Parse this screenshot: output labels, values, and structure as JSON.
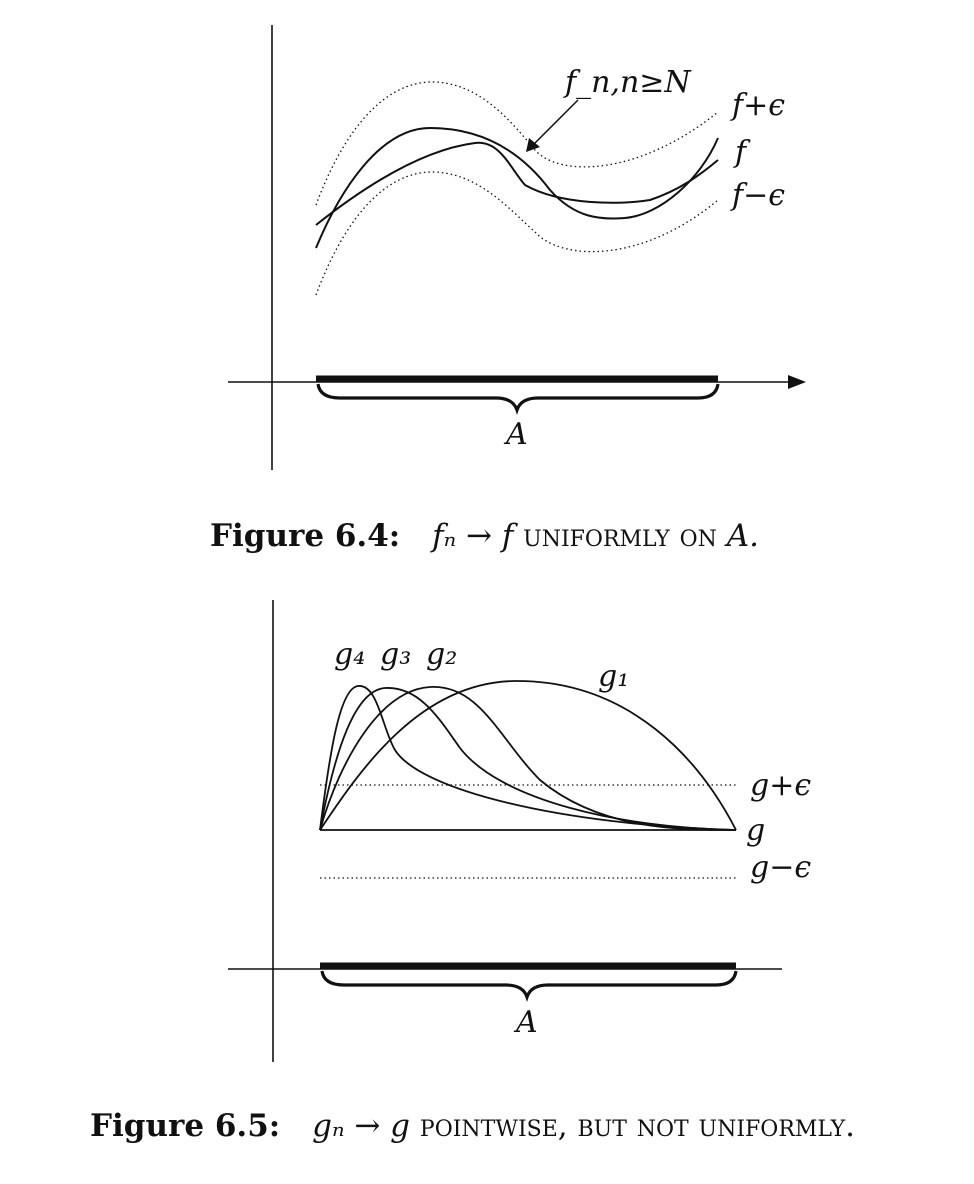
{
  "figure1": {
    "labels": {
      "fn": "f_n,n≥N",
      "f_plus": "f+ϵ",
      "f": "f",
      "f_minus": "f−ϵ",
      "A": "A"
    },
    "caption": {
      "number": "Figure 6.4:",
      "math": "fₙ → f",
      "text": "uniformly on",
      "tail": "A."
    }
  },
  "figure2": {
    "labels": {
      "g4": "g₄",
      "g3": "g₃",
      "g2": "g₂",
      "g1": "g₁",
      "g_plus": "g+ϵ",
      "g": "g",
      "g_minus": "g−ϵ",
      "A": "A"
    },
    "caption": {
      "number": "Figure 6.5:",
      "math": "gₙ → g",
      "text": "pointwise, but not uniformly."
    }
  }
}
